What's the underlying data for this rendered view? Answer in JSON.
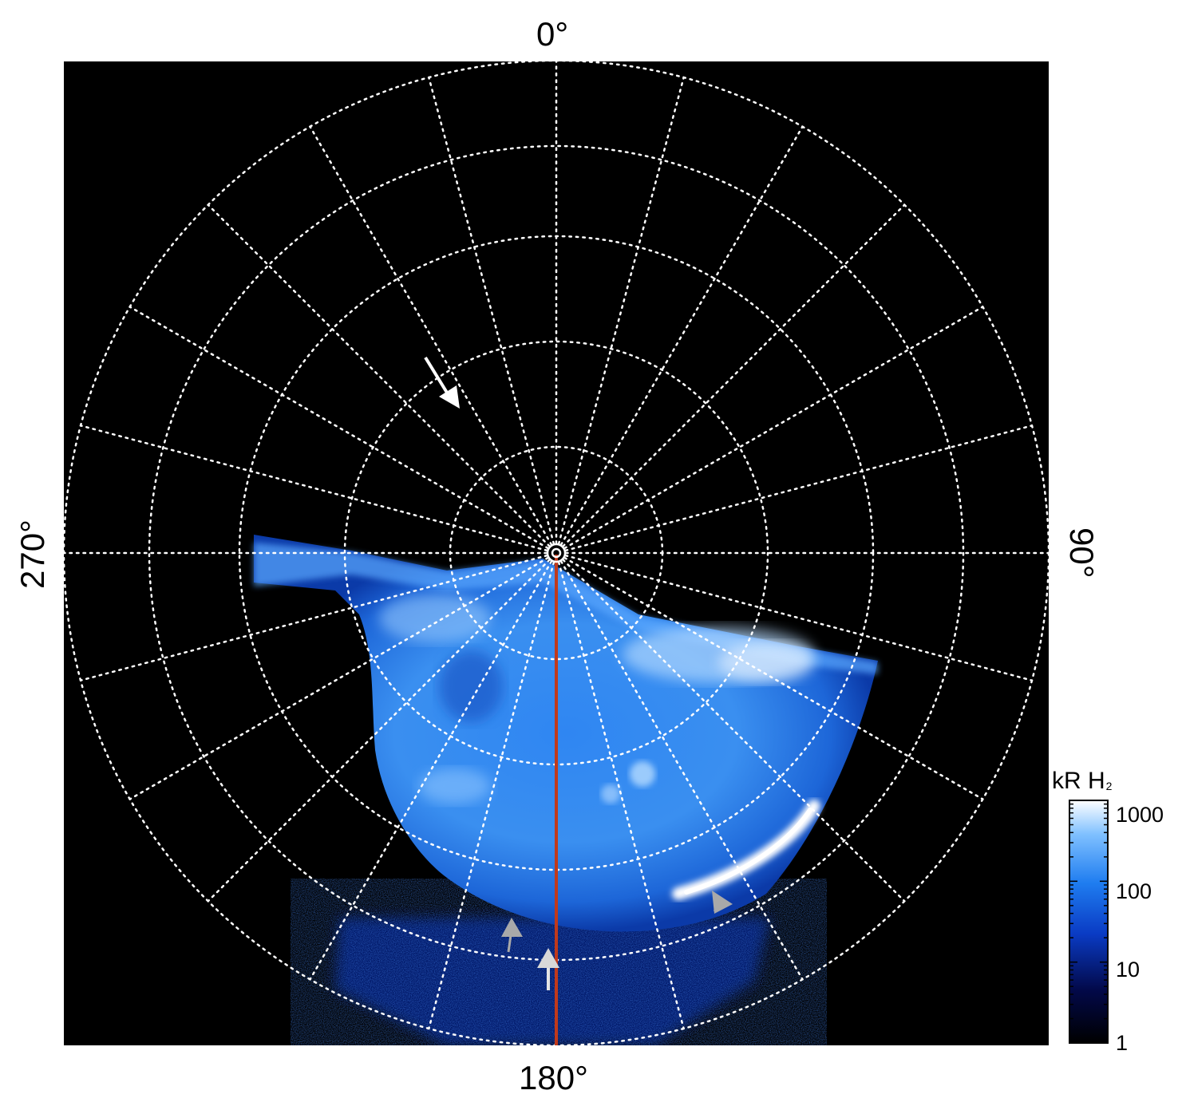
{
  "figure": {
    "labels": {
      "top": "0°",
      "right": "90°",
      "bottom": "180°",
      "left": "270°"
    },
    "colorbar": {
      "title": "kR H",
      "title_subscript": "2",
      "scale": "log",
      "ticks": [
        "1000",
        "100",
        "10",
        "1"
      ],
      "colors": [
        "#000000",
        "#02094a",
        "#0a3bc4",
        "#1f7df0",
        "#7fc0ff",
        "#ffffff"
      ]
    },
    "grid": {
      "style": "dotted",
      "color": "#ffffff",
      "spokes": 24,
      "rings": 5
    },
    "colors": {
      "background": "#000000",
      "meridian_line": "#c0391b",
      "white_arrow": "#ffffff",
      "gray_arrows": "#a9a9a9"
    },
    "markers": [
      "white-arrow",
      "gray-arrow",
      "gray-arrow",
      "gray-arrow"
    ]
  }
}
